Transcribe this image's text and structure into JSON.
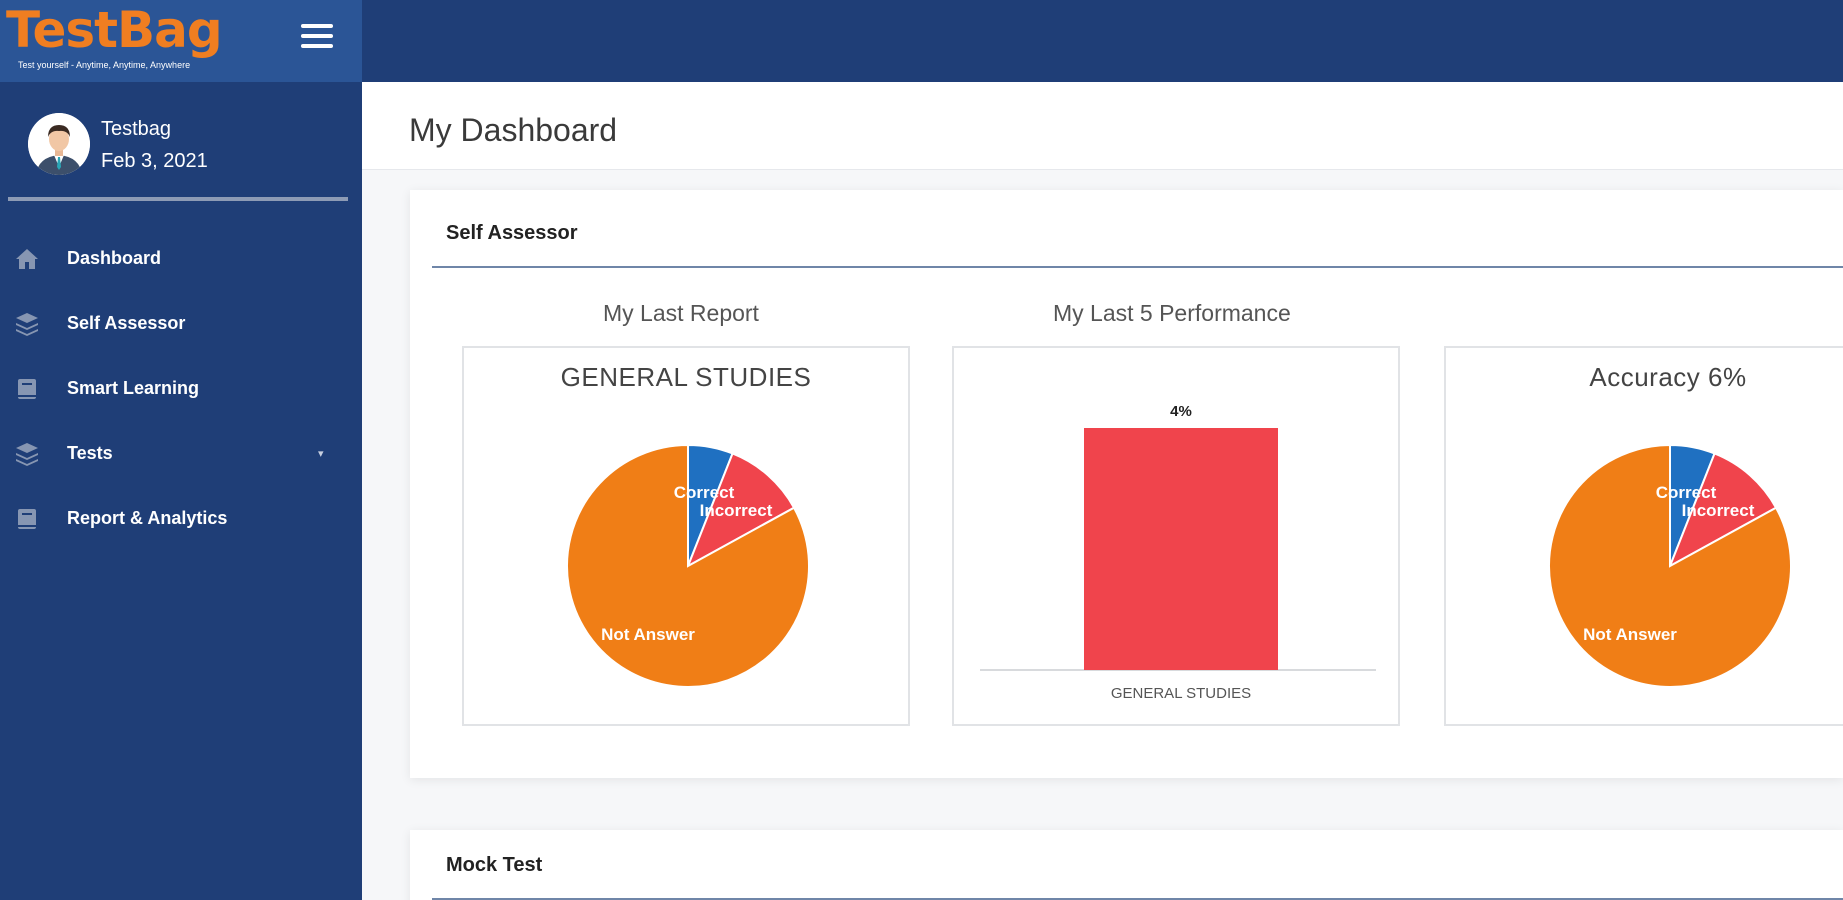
{
  "brand": {
    "name": "TestBag",
    "tagline": "Test yourself - Anytime, Anytime, Anywhere"
  },
  "user": {
    "name": "Testbag",
    "date": "Feb 3, 2021"
  },
  "nav": [
    {
      "label": "Dashboard",
      "icon": "home-icon"
    },
    {
      "label": "Self Assessor",
      "icon": "layers-icon"
    },
    {
      "label": "Smart Learning",
      "icon": "book-icon"
    },
    {
      "label": "Tests",
      "icon": "layers-icon",
      "caret": "▾"
    },
    {
      "label": "Report & Analytics",
      "icon": "book-icon"
    }
  ],
  "page": {
    "title": "My Dashboard"
  },
  "self_assessor": {
    "title": "Self Assessor",
    "last_report_label": "My Last Report",
    "last5_label": "My Last 5 Performance"
  },
  "mock_test": {
    "title": "Mock Test"
  },
  "colors": {
    "sidebar": "#1f3e77",
    "brand_bar": "#2b5596",
    "brand_orange": "#f07e21",
    "correct": "#1f70c1",
    "incorrect": "#f0444c",
    "not_answer": "#f07e16"
  },
  "chart_data": [
    {
      "type": "pie",
      "title": "GENERAL STUDIES",
      "slices": [
        {
          "label": "Correct",
          "value": 6
        },
        {
          "label": "Incorrect",
          "value": 11
        },
        {
          "label": "Not Answer",
          "value": 83
        }
      ]
    },
    {
      "type": "bar",
      "categories": [
        "GENERAL STUDIES"
      ],
      "values": [
        4
      ],
      "data_labels": [
        "4%"
      ]
    },
    {
      "type": "pie",
      "title": "Accuracy 6%",
      "slices": [
        {
          "label": "Correct",
          "value": 6
        },
        {
          "label": "Incorrect",
          "value": 11
        },
        {
          "label": "Not Answer",
          "value": 83
        }
      ]
    }
  ]
}
